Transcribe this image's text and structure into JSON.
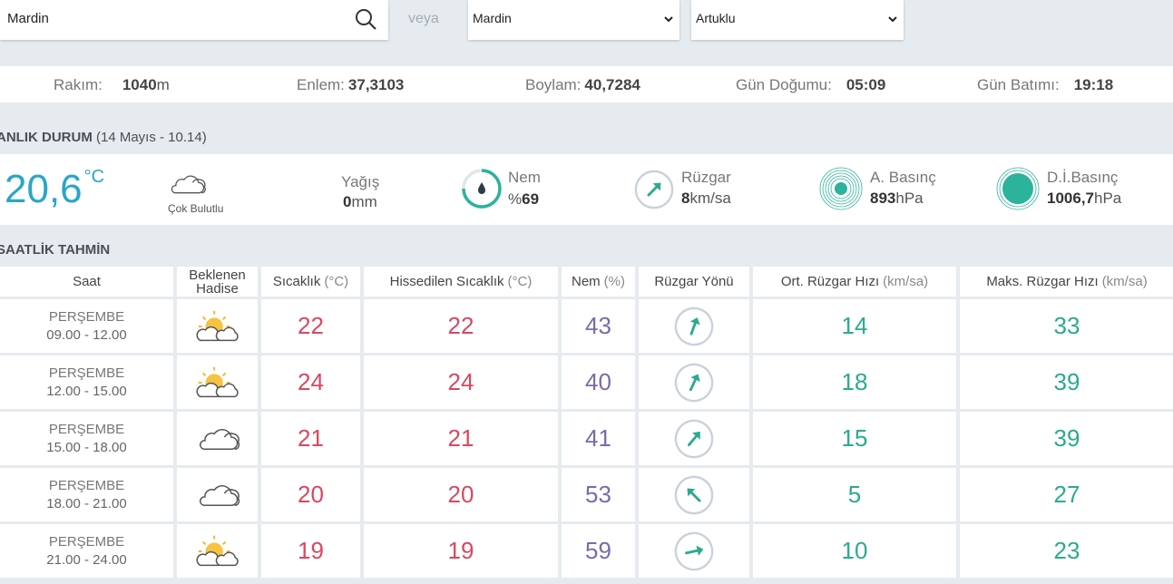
{
  "search": {
    "query": "Mardin",
    "or": "veya",
    "province": "Mardin",
    "district": "Artuklu"
  },
  "info": [
    {
      "label": "Rakım:",
      "value": "1040",
      "unit": "m"
    },
    {
      "label": "Enlem:",
      "value": "37,3103"
    },
    {
      "label": "Boylam:",
      "value": "40,7284"
    },
    {
      "label": "Gün Doğumu:",
      "value": "05:09"
    },
    {
      "label": "Gün Batımı:",
      "value": "19:18"
    }
  ],
  "current": {
    "title": "ANLIK DURUM",
    "date": "(14 Mayıs - 10.14)",
    "temperature": "20,6",
    "temperature_unit": "°C",
    "condition": "Çok Bulutlu",
    "precipitation": {
      "label": "Yağış",
      "value": "0",
      "unit": "mm"
    },
    "humidity": {
      "label": "Nem",
      "unit": "%",
      "value": "69"
    },
    "wind": {
      "label": "Rüzgar",
      "value": "8",
      "unit": "km/sa"
    },
    "pressure": {
      "label": "A. Basınç",
      "value": "893",
      "unit": "hPa"
    },
    "sea_pressure": {
      "label": "D.İ.Basınç",
      "value": "1006,7",
      "unit": "hPa"
    }
  },
  "table": {
    "title": "SAATLİK TAHMİN",
    "headers": [
      {
        "label": "Saat"
      },
      {
        "label": "Beklenen Hadise"
      },
      {
        "label": "Sıcaklık",
        "unit": "(°C)"
      },
      {
        "label": "Hissedilen Sıcaklık",
        "unit": "(°C)"
      },
      {
        "label": "Nem",
        "unit": "(%)"
      },
      {
        "label": "Rüzgar Yönü"
      },
      {
        "label": "Ort. Rüzgar Hızı",
        "unit": "(km/sa)"
      },
      {
        "label": "Maks. Rüzgar Hızı",
        "unit": "(km/sa)"
      }
    ],
    "rows": [
      {
        "day": "PERŞEMBE",
        "time": "09.00 - 12.00",
        "temperature": 22,
        "feels_like": 22,
        "humidity": 43,
        "wind_avg": 14,
        "wind_max": 33
      },
      {
        "day": "PERŞEMBE",
        "time": "12.00 - 15.00",
        "temperature": 24,
        "feels_like": 24,
        "humidity": 40,
        "wind_avg": 18,
        "wind_max": 39
      },
      {
        "day": "PERŞEMBE",
        "time": "15.00 - 18.00",
        "temperature": 21,
        "feels_like": 21,
        "humidity": 41,
        "wind_avg": 15,
        "wind_max": 39
      },
      {
        "day": "PERŞEMBE",
        "time": "18.00 - 21.00",
        "temperature": 20,
        "feels_like": 20,
        "humidity": 53,
        "wind_avg": 5,
        "wind_max": 27
      },
      {
        "day": "PERŞEMBE",
        "time": "21.00 - 24.00",
        "temperature": 19,
        "feels_like": 19,
        "humidity": 59,
        "wind_avg": 10,
        "wind_max": 23
      }
    ]
  }
}
